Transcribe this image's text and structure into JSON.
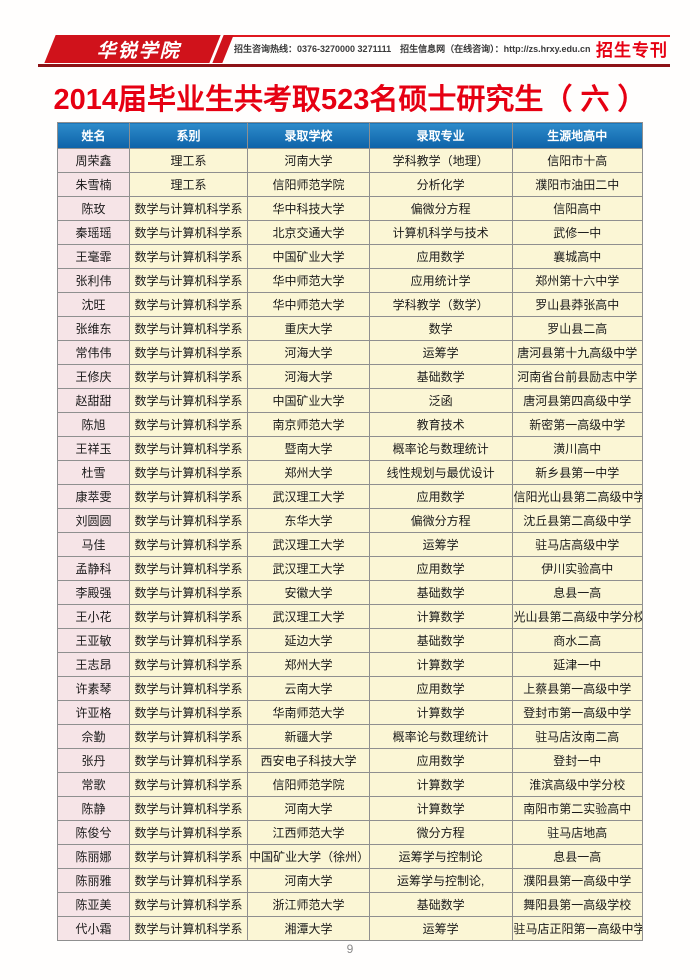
{
  "header": {
    "logo_text": "华锐学院",
    "contact_line": "招生咨询热线：0376-3270000 3271111　招生信息网（在线咨询）：http://zs.hrxy.edu.cn",
    "masthead_label": "招生专刊",
    "title": "2014届毕业生共考取523名硕士研究生（ 六 ）"
  },
  "table": {
    "columns": [
      "姓名",
      "系别",
      "录取学校",
      "录取专业",
      "生源地高中"
    ],
    "rows": [
      [
        "周荣鑫",
        "理工系",
        "河南大学",
        "学科教学（地理）",
        "信阳市十高"
      ],
      [
        "朱雪楠",
        "理工系",
        "信阳师范学院",
        "分析化学",
        "濮阳市油田二中"
      ],
      [
        "陈玫",
        "数学与计算机科学系",
        "华中科技大学",
        "偏微分方程",
        "信阳高中"
      ],
      [
        "秦瑶瑶",
        "数学与计算机科学系",
        "北京交通大学",
        "计算机科学与技术",
        "武修一中"
      ],
      [
        "王毫霏",
        "数学与计算机科学系",
        "中国矿业大学",
        "应用数学",
        "襄城高中"
      ],
      [
        "张利伟",
        "数学与计算机科学系",
        "华中师范大学",
        "应用统计学",
        "郑州第十六中学"
      ],
      [
        "沈旺",
        "数学与计算机科学系",
        "华中师范大学",
        "学科教学（数学）",
        "罗山县莽张高中"
      ],
      [
        "张维东",
        "数学与计算机科学系",
        "重庆大学",
        "数学",
        "罗山县二高"
      ],
      [
        "常伟伟",
        "数学与计算机科学系",
        "河海大学",
        "运筹学",
        "唐河县第十九高级中学"
      ],
      [
        "王修庆",
        "数学与计算机科学系",
        "河海大学",
        "基础数学",
        "河南省台前县励志中学"
      ],
      [
        "赵甜甜",
        "数学与计算机科学系",
        "中国矿业大学",
        "泛函",
        "唐河县第四高级中学"
      ],
      [
        "陈旭",
        "数学与计算机科学系",
        "南京师范大学",
        "教育技术",
        "新密第一高级中学"
      ],
      [
        "王祥玉",
        "数学与计算机科学系",
        "暨南大学",
        "概率论与数理统计",
        "潢川高中"
      ],
      [
        "杜雪",
        "数学与计算机科学系",
        "郑州大学",
        "线性规划与最优设计",
        "新乡县第一中学"
      ],
      [
        "康萃雯",
        "数学与计算机科学系",
        "武汉理工大学",
        "应用数学",
        "信阳光山县第二高级中学"
      ],
      [
        "刘圆圆",
        "数学与计算机科学系",
        "东华大学",
        "偏微分方程",
        "沈丘县第二高级中学"
      ],
      [
        "马佳",
        "数学与计算机科学系",
        "武汉理工大学",
        "运筹学",
        "驻马店高级中学"
      ],
      [
        "孟静科",
        "数学与计算机科学系",
        "武汉理工大学",
        "应用数学",
        "伊川实验高中"
      ],
      [
        "李殿强",
        "数学与计算机科学系",
        "安徽大学",
        "基础数学",
        "息县一高"
      ],
      [
        "王小花",
        "数学与计算机科学系",
        "武汉理工大学",
        "计算数学",
        "光山县第二高级中学分校"
      ],
      [
        "王亚敏",
        "数学与计算机科学系",
        "延边大学",
        "基础数学",
        "商水二高"
      ],
      [
        "王志昂",
        "数学与计算机科学系",
        "郑州大学",
        "计算数学",
        "延津一中"
      ],
      [
        "许素琴",
        "数学与计算机科学系",
        "云南大学",
        "应用数学",
        "上蔡县第一高级中学"
      ],
      [
        "许亚格",
        "数学与计算机科学系",
        "华南师范大学",
        "计算数学",
        "登封市第一高级中学"
      ],
      [
        "佘勤",
        "数学与计算机科学系",
        "新疆大学",
        "概率论与数理统计",
        "驻马店汝南二高"
      ],
      [
        "张丹",
        "数学与计算机科学系",
        "西安电子科技大学",
        "应用数学",
        "登封一中"
      ],
      [
        "常歌",
        "数学与计算机科学系",
        "信阳师范学院",
        "计算数学",
        "淮滨高级中学分校"
      ],
      [
        "陈静",
        "数学与计算机科学系",
        "河南大学",
        "计算数学",
        "南阳市第二实验高中"
      ],
      [
        "陈俊兮",
        "数学与计算机科学系",
        "江西师范大学",
        "微分方程",
        "驻马店地高"
      ],
      [
        "陈丽娜",
        "数学与计算机科学系",
        "中国矿业大学（徐州）",
        "运筹学与控制论",
        "息县一高"
      ],
      [
        "陈丽雅",
        "数学与计算机科学系",
        "河南大学",
        "运筹学与控制论,",
        "濮阳县第一高级中学"
      ],
      [
        "陈亚美",
        "数学与计算机科学系",
        "浙江师范大学",
        "基础数学",
        "舞阳县第一高级学校"
      ],
      [
        "代小霜",
        "数学与计算机科学系",
        "湘潭大学",
        "运筹学",
        "驻马店正阳第一高级中学"
      ]
    ],
    "column_widths_percent": [
      12.3,
      20.2,
      20.8,
      24.4,
      22.3
    ]
  },
  "footer": {
    "page_number": "9"
  },
  "colors": {
    "brand_red": "#e60012",
    "logo_red": "#d0121b",
    "header_rule_dark_red": "#8d1216",
    "table_header_blue": "#0d62a8",
    "name_cell_pink": "#f6e4e7",
    "data_cell_yellow": "#fbf6d5",
    "border_gray": "#8f8f8f"
  }
}
